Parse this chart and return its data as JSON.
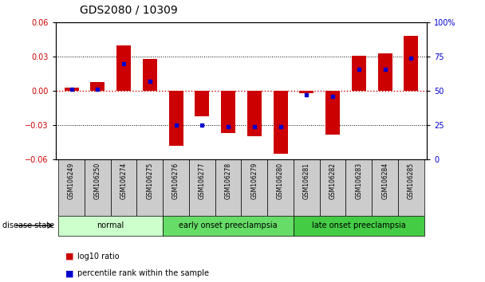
{
  "title": "GDS2080 / 10309",
  "samples": [
    "GSM106249",
    "GSM106250",
    "GSM106274",
    "GSM106275",
    "GSM106276",
    "GSM106277",
    "GSM106278",
    "GSM106279",
    "GSM106280",
    "GSM106281",
    "GSM106282",
    "GSM106283",
    "GSM106284",
    "GSM106285"
  ],
  "log10_ratio": [
    0.003,
    0.008,
    0.04,
    0.028,
    -0.048,
    -0.022,
    -0.037,
    -0.04,
    -0.055,
    -0.002,
    -0.038,
    0.031,
    0.033,
    0.048
  ],
  "percentile": [
    51,
    51,
    70,
    57,
    25,
    25,
    24,
    24,
    24,
    47,
    46,
    66,
    66,
    74
  ],
  "ylim": [
    -0.06,
    0.06
  ],
  "yticks_left": [
    -0.06,
    -0.03,
    0,
    0.03,
    0.06
  ],
  "yticks_right": [
    0,
    25,
    50,
    75,
    100
  ],
  "bar_color": "#cc0000",
  "dot_color": "#0000cc",
  "zero_line_color": "#cc0000",
  "groups": [
    {
      "label": "normal",
      "start": 0,
      "end": 4,
      "color": "#ccffcc"
    },
    {
      "label": "early onset preeclampsia",
      "start": 4,
      "end": 9,
      "color": "#66dd66"
    },
    {
      "label": "late onset preeclampsia",
      "start": 9,
      "end": 14,
      "color": "#44cc44"
    }
  ],
  "disease_label": "disease state",
  "legend_red": "log10 ratio",
  "legend_blue": "percentile rank within the sample",
  "bar_width": 0.55,
  "bg_color": "#ffffff",
  "axis_label_color_left": "#cc0000",
  "axis_label_color_right": "#0000cc",
  "label_box_color": "#cccccc",
  "title_fontsize": 10,
  "tick_fontsize": 7,
  "sample_fontsize": 5.5,
  "group_fontsize": 7,
  "legend_fontsize": 7
}
